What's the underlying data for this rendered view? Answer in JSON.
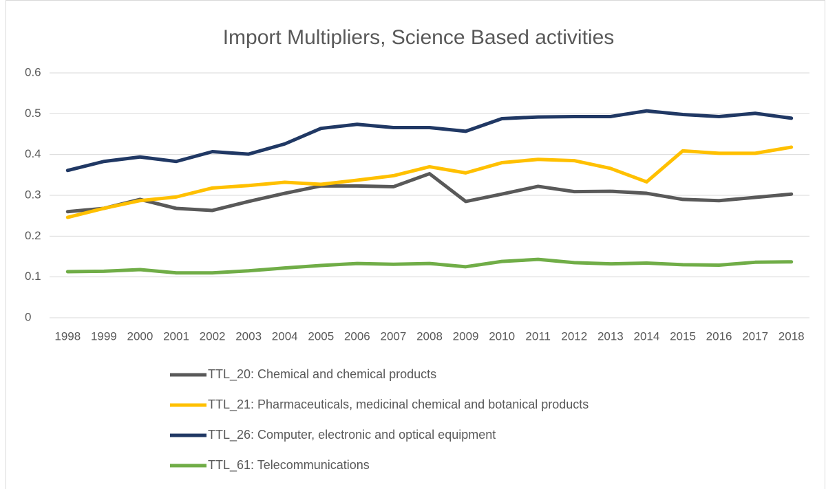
{
  "chart_data": {
    "type": "line",
    "title": "Import Multipliers, Science Based activities",
    "categories": [
      "1998",
      "1999",
      "2000",
      "2001",
      "2002",
      "2003",
      "2004",
      "2005",
      "2006",
      "2007",
      "2008",
      "2009",
      "2010",
      "2011",
      "2012",
      "2013",
      "2014",
      "2015",
      "2016",
      "2017",
      "2018"
    ],
    "series": [
      {
        "name": "TTL_20: Chemical and chemical products",
        "color": "#595959",
        "values": [
          0.26,
          0.268,
          0.29,
          0.268,
          0.263,
          0.285,
          0.305,
          0.323,
          0.323,
          0.321,
          0.353,
          0.285,
          0.303,
          0.322,
          0.309,
          0.31,
          0.305,
          0.29,
          0.287,
          0.295,
          0.303
        ]
      },
      {
        "name": "TTL_21: Pharmaceuticals, medicinal chemical and botanical products",
        "color": "#ffc000",
        "values": [
          0.246,
          0.268,
          0.287,
          0.296,
          0.318,
          0.324,
          0.332,
          0.327,
          0.337,
          0.348,
          0.37,
          0.355,
          0.38,
          0.388,
          0.385,
          0.366,
          0.333,
          0.409,
          0.403,
          0.403,
          0.418
        ]
      },
      {
        "name": "TTL_26: Computer, electronic and optical equipment",
        "color": "#203864",
        "values": [
          0.361,
          0.383,
          0.394,
          0.383,
          0.407,
          0.401,
          0.426,
          0.464,
          0.474,
          0.466,
          0.466,
          0.457,
          0.488,
          0.492,
          0.493,
          0.493,
          0.507,
          0.498,
          0.493,
          0.501,
          0.489
        ]
      },
      {
        "name": "TTL_61: Telecommunications",
        "color": "#70ad47",
        "values": [
          0.113,
          0.114,
          0.118,
          0.11,
          0.11,
          0.115,
          0.122,
          0.128,
          0.133,
          0.131,
          0.133,
          0.125,
          0.138,
          0.143,
          0.135,
          0.132,
          0.134,
          0.13,
          0.129,
          0.136,
          0.137
        ]
      }
    ],
    "ylim": [
      0,
      0.6
    ],
    "yticks": [
      0,
      0.1,
      0.2,
      0.3,
      0.4,
      0.5,
      0.6
    ],
    "grid": true,
    "legend": "bottom"
  }
}
